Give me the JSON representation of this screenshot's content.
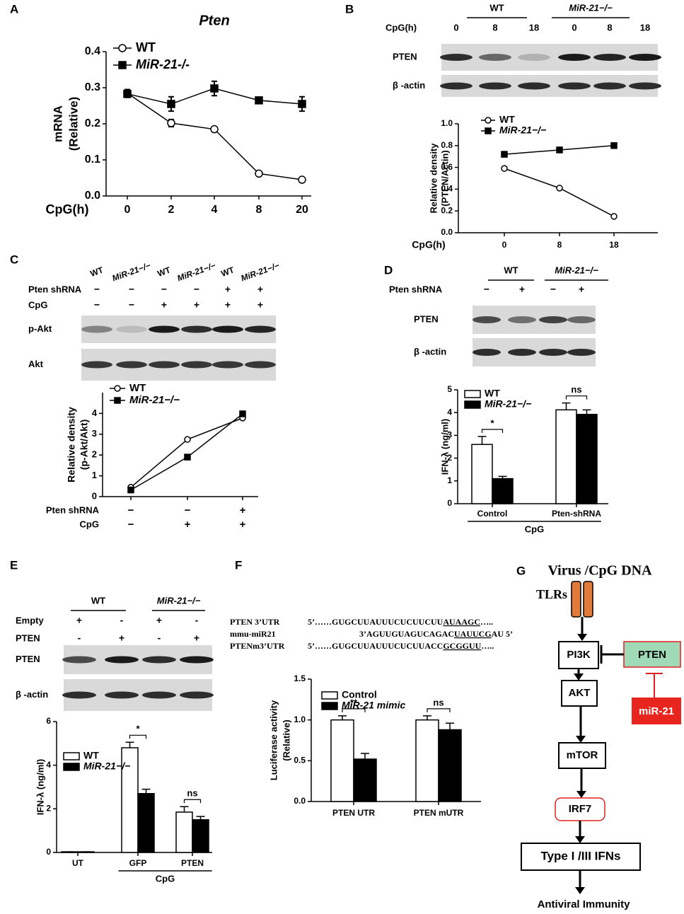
{
  "panel_labels": [
    "A",
    "B",
    "C",
    "D",
    "E",
    "F",
    "G"
  ],
  "chart_data": [
    {
      "type": "line",
      "title": "Pten",
      "y_label": [
        "mRNA",
        "(Relative)"
      ],
      "x_label": "CpG(h)",
      "categories": [
        "0",
        "2",
        "4",
        "8",
        "20"
      ],
      "ylim": [
        0,
        0.4
      ],
      "yticks": [
        {
          "value": 0,
          "label": "0.0"
        },
        0.1,
        0.2,
        0.3,
        0.4
      ],
      "series": [
        {
          "name": "WT",
          "color": "#000000",
          "marker": "o",
          "marker_fill": "#ffffff",
          "values": [
            0.285,
            0.202,
            0.185,
            0.062,
            0.045
          ],
          "errors": [
            0.01,
            0.01,
            0.005,
            0.003,
            0.003
          ]
        },
        {
          "name": "MiR-21-/-",
          "color": "#000000",
          "marker": "s",
          "marker_fill": "#000000",
          "values": [
            0.283,
            0.255,
            0.298,
            0.265,
            0.255
          ],
          "errors": [
            0.01,
            0.02,
            0.02,
            0.008,
            0.02
          ]
        }
      ]
    },
    {
      "type": "line",
      "y_label": [
        "Relative density",
        "(PTEN/Actin)"
      ],
      "x_label": "CpG(h)",
      "categories": [
        "0",
        "8",
        "18"
      ],
      "ylim": [
        0,
        1
      ],
      "yticks": [
        {
          "value": 0,
          "label": "0.0"
        },
        0.2,
        0.4,
        0.6,
        0.8,
        {
          "value": 1,
          "label": "1.0"
        }
      ],
      "series": [
        {
          "name": "WT",
          "color": "#000000",
          "marker": "o",
          "marker_fill": "#ffffff",
          "values": [
            0.59,
            0.41,
            0.15
          ]
        },
        {
          "name": "MiR-21−/−",
          "color": "#000000",
          "marker": "s",
          "marker_fill": "#000000",
          "values": [
            0.72,
            0.76,
            0.8
          ]
        }
      ]
    },
    {
      "type": "line",
      "y_label": [
        "Relative density",
        "(p-Akt/Akt)"
      ],
      "categories": [
        null,
        null,
        null
      ],
      "x_rows": [
        {
          "label": "Pten shRNA",
          "values": [
            "−",
            "−",
            "+"
          ]
        },
        {
          "label": "CpG",
          "values": [
            "−",
            "+",
            "+"
          ]
        }
      ],
      "ylim": [
        0,
        5
      ],
      "yticks": [
        0,
        1,
        2,
        3,
        4
      ],
      "series": [
        {
          "name": "WT",
          "color": "#000000",
          "marker": "o",
          "marker_fill": "#ffffff",
          "values": [
            0.45,
            2.75,
            3.78
          ]
        },
        {
          "name": "MiR-21−/−",
          "color": "#000000",
          "marker": "s",
          "marker_fill": "#000000",
          "values": [
            0.32,
            1.9,
            3.98
          ]
        }
      ]
    },
    {
      "type": "bar",
      "y_label": [
        "IFN-λ (ng/ml)"
      ],
      "categories": [
        "Control",
        "Pten-shRNA"
      ],
      "group_label": {
        "text": "CpG",
        "categories": [
          0,
          1
        ]
      },
      "ylim": [
        0,
        5
      ],
      "yticks": [
        0,
        1,
        2,
        3,
        4,
        5
      ],
      "series": [
        {
          "name": "WT",
          "color": "#ffffff",
          "edgecolor": "#000000",
          "values": [
            2.6,
            4.12
          ],
          "errors": [
            0.35,
            0.3
          ]
        },
        {
          "name": "MiR-21−/−",
          "color": "#000000",
          "edgecolor": "#000000",
          "values": [
            1.1,
            3.92
          ],
          "errors": [
            0.1,
            0.2
          ]
        }
      ],
      "annotations": [
        {
          "text": "*",
          "category": 0
        },
        {
          "text": "ns",
          "category": 1
        }
      ]
    },
    {
      "type": "bar",
      "y_label": [
        "IFN-λ (ng/ml)"
      ],
      "categories": [
        "UT",
        "GFP",
        "PTEN"
      ],
      "group_label": {
        "text": "CpG",
        "categories": [
          1,
          2
        ]
      },
      "ylim": [
        0,
        6
      ],
      "yticks": [
        0,
        2,
        4,
        6
      ],
      "series": [
        {
          "name": "WT",
          "color": "#ffffff",
          "edgecolor": "#000000",
          "values": [
            0.03,
            4.8,
            1.85
          ],
          "errors": [
            0,
            0.25,
            0.25
          ]
        },
        {
          "name": "MiR-21−/−",
          "color": "#000000",
          "edgecolor": "#000000",
          "values": [
            0.03,
            2.7,
            1.5
          ],
          "errors": [
            0,
            0.2,
            0.15
          ]
        }
      ],
      "annotations": [
        {
          "text": "*",
          "category": 1
        },
        {
          "text": "ns",
          "category": 2
        }
      ]
    },
    {
      "type": "bar",
      "y_label": [
        "Luciferase activity",
        "(Relative)"
      ],
      "categories": [
        "PTEN UTR",
        "PTEN mUTR"
      ],
      "ylim": [
        0,
        1.5
      ],
      "yticks": [
        {
          "value": 0,
          "label": "0.0"
        },
        0.5,
        {
          "value": 1,
          "label": "1.0"
        },
        1.5
      ],
      "series": [
        {
          "name": "Control",
          "color": "#ffffff",
          "edgecolor": "#000000",
          "values": [
            1.0,
            1.0
          ],
          "errors": [
            0.05,
            0.05
          ]
        },
        {
          "name": "MiR-21 mimic",
          "color": "#000000",
          "edgecolor": "#000000",
          "values": [
            0.52,
            0.88
          ],
          "errors": [
            0.07,
            0.08
          ]
        }
      ],
      "annotations": [
        {
          "text": "**",
          "category": 0
        },
        {
          "text": "ns",
          "category": 1
        }
      ]
    }
  ],
  "blots": {
    "B": {
      "groups": [
        "WT",
        "MiR-21−/−"
      ],
      "row_header": "CpG(h)",
      "lanes": [
        "0",
        "8",
        "18",
        "0",
        "8",
        "18"
      ],
      "rows": [
        "PTEN",
        "β -actin"
      ]
    },
    "C": {
      "lanes": [
        "WT",
        "MiR-21−/−",
        "WT",
        "MiR-21−/−",
        "WT",
        "MiR-21−/−"
      ],
      "conditions": [
        {
          "label": "Pten shRNA",
          "values": [
            "−",
            "−",
            "−",
            "−",
            "+",
            "+"
          ]
        },
        {
          "label": "CpG",
          "values": [
            "−",
            "−",
            "+",
            "+",
            "+",
            "+"
          ]
        }
      ],
      "rows": [
        "p-Akt",
        "Akt"
      ]
    },
    "D": {
      "groups": [
        "WT",
        "MiR-21−/−"
      ],
      "conditions": [
        {
          "label": "Pten shRNA",
          "values": [
            "−",
            "+",
            "−",
            "+"
          ]
        }
      ],
      "rows": [
        "PTEN",
        "β -actin"
      ]
    },
    "E": {
      "groups": [
        "WT",
        "MiR-21−/−"
      ],
      "conditions": [
        {
          "label": "Empty",
          "values": [
            "+",
            "-",
            "+",
            "-"
          ]
        },
        {
          "label": "PTEN",
          "values": [
            "-",
            "+",
            "-",
            "+"
          ]
        }
      ],
      "rows": [
        "PTEN",
        "β -actin"
      ]
    }
  },
  "sequences": [
    {
      "label": "PTEN 3’UTR",
      "prefix": "5’……GUGCUUAUUUCUCUUCUU",
      "site": "AUAAGC",
      "suffix": "….."
    },
    {
      "label": "mmu-miR21",
      "prefix": "3’AGUUGUAGUCAGAC",
      "site": "UAUUCG",
      "suffix": "AU 5’"
    },
    {
      "label": "PTENm3’UTR",
      "prefix": "5’……GUGCUUAUUUCUCUUACC",
      "site": "GCGGUU",
      "suffix": "….."
    }
  ],
  "diagram": {
    "stimulus": "Virus /CpG DNA",
    "receptor": "TLRs",
    "pathway": [
      "PI3K",
      "AKT",
      "mTOR",
      "IRF7",
      "Type I /III IFNs"
    ],
    "outcome": "Antiviral Immunity",
    "inhibitor": "PTEN",
    "regulator": "miR-21"
  }
}
